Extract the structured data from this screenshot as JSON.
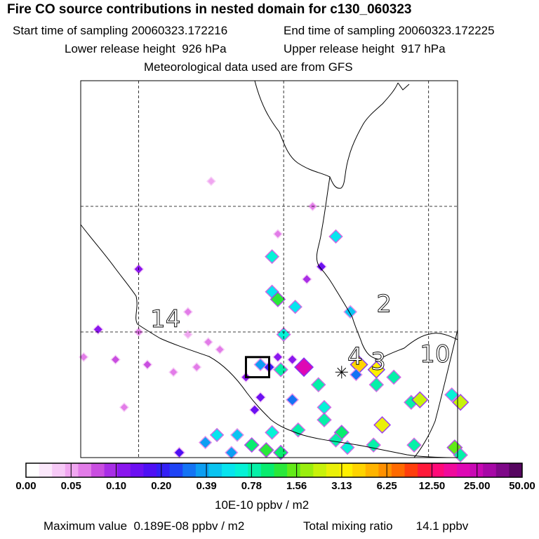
{
  "header": {
    "title": "Fire CO source contributions in nested domain for c130_060323",
    "start_time": "Start time of sampling 20060323.172216",
    "end_time": "End time of sampling 20060323.172225",
    "lower_release": "Lower release height  926 hPa",
    "upper_release": "Upper release height  917 hPa",
    "meteo": "Meteorological data used are from GFS"
  },
  "footer": {
    "unit": "10E-10 ppbv / m2",
    "max_value": "Maximum value  0.189E-08 ppbv / m2",
    "total_mixing_ratio": "Total mixing ratio       14.1 ppbv"
  },
  "chart_data": {
    "type": "heatmap",
    "title": "Fire CO source contributions in nested domain for c130_060323",
    "colorbar": {
      "unit": "10E-10 ppbv / m2",
      "tick_labels": [
        "0.00",
        "0.05",
        "0.10",
        "0.20",
        "0.39",
        "0.78",
        "1.56",
        "3.13",
        "6.25",
        "12.50",
        "25.00",
        "50.00"
      ],
      "colors": [
        "#ffffff",
        "#fbe8fb",
        "#f6c9f6",
        "#f0a6f0",
        "#e27ce8",
        "#c94ee0",
        "#a82ee6",
        "#8a17ee",
        "#6c10f2",
        "#4e10f4",
        "#3320f5",
        "#1f44f5",
        "#1474f4",
        "#0d9ef2",
        "#0ac4f0",
        "#08e4ee",
        "#06f2d6",
        "#06f0a8",
        "#08ec6e",
        "#2ae83a",
        "#62ea18",
        "#9aee0e",
        "#c8f20a",
        "#eaf008",
        "#fff000",
        "#ffd400",
        "#ffb400",
        "#ff9000",
        "#ff6a00",
        "#ff3e0c",
        "#ff1a3a",
        "#ff0a78",
        "#f00a9c",
        "#de08b4",
        "#c808b4",
        "#a608a6",
        "#7e0888",
        "#560660"
      ]
    },
    "markers": [
      {
        "label": "14",
        "lon": -99.6,
        "lat": 20.2
      },
      {
        "label": "2",
        "lon": -91.8,
        "lat": 20.8
      },
      {
        "label": "3",
        "lon": -92.0,
        "lat": 18.5
      },
      {
        "label": "10",
        "lon": -90.3,
        "lat": 18.8
      },
      {
        "label": "4",
        "lon": -92.8,
        "lat": 18.7
      }
    ],
    "sampling_point": {
      "lon": -93.0,
      "lat": 18.4
    },
    "source_box": {
      "lon": [
        -96.3,
        -95.5
      ],
      "lat": [
        18.2,
        19.0
      ]
    },
    "extent": {
      "lon": [
        -102,
        -89
      ],
      "lat": [
        15,
        30
      ]
    },
    "gridlines": {
      "lon": [
        -100,
        -95,
        -90
      ],
      "lat": [
        25,
        20
      ]
    },
    "cells": [
      {
        "lon": -97.5,
        "lat": 26.0,
        "level": 3
      },
      {
        "lon": -94.0,
        "lat": 25.0,
        "level": 4
      },
      {
        "lon": -95.2,
        "lat": 23.9,
        "level": 4
      },
      {
        "lon": -95.4,
        "lat": 23.0,
        "level": 16
      },
      {
        "lon": -93.2,
        "lat": 23.8,
        "level": 15
      },
      {
        "lon": -93.7,
        "lat": 22.6,
        "level": 8
      },
      {
        "lon": -94.2,
        "lat": 22.1,
        "level": 6
      },
      {
        "lon": -100.0,
        "lat": 22.5,
        "level": 7
      },
      {
        "lon": -95.4,
        "lat": 21.6,
        "level": 15
      },
      {
        "lon": -95.2,
        "lat": 21.3,
        "level": 19
      },
      {
        "lon": -94.6,
        "lat": 21.0,
        "level": 15
      },
      {
        "lon": -92.7,
        "lat": 20.8,
        "level": 14
      },
      {
        "lon": -95.0,
        "lat": 19.9,
        "level": 16
      },
      {
        "lon": -100.0,
        "lat": 20.0,
        "level": 4
      },
      {
        "lon": -101.4,
        "lat": 20.1,
        "level": 7
      },
      {
        "lon": -98.3,
        "lat": 20.8,
        "level": 4
      },
      {
        "lon": -98.3,
        "lat": 19.9,
        "level": 3
      },
      {
        "lon": -97.6,
        "lat": 19.6,
        "level": 4
      },
      {
        "lon": -97.2,
        "lat": 19.3,
        "level": 4
      },
      {
        "lon": -100.8,
        "lat": 18.9,
        "level": 5
      },
      {
        "lon": -101.9,
        "lat": 19.0,
        "level": 4
      },
      {
        "lon": -99.7,
        "lat": 18.7,
        "level": 5
      },
      {
        "lon": -98.8,
        "lat": 18.4,
        "level": 4
      },
      {
        "lon": -98.0,
        "lat": 18.6,
        "level": 4
      },
      {
        "lon": -95.2,
        "lat": 19.0,
        "level": 7
      },
      {
        "lon": -94.7,
        "lat": 18.9,
        "level": 7
      },
      {
        "lon": -95.5,
        "lat": 18.6,
        "level": 10
      },
      {
        "lon": -96.3,
        "lat": 18.2,
        "level": 7
      },
      {
        "lon": -95.8,
        "lat": 18.7,
        "level": 13
      },
      {
        "lon": -95.1,
        "lat": 18.5,
        "level": 17
      },
      {
        "lon": -94.3,
        "lat": 18.6,
        "level": 33
      },
      {
        "lon": -93.8,
        "lat": 17.9,
        "level": 17
      },
      {
        "lon": -95.8,
        "lat": 17.4,
        "level": 8
      },
      {
        "lon": -94.7,
        "lat": 17.3,
        "level": 12
      },
      {
        "lon": -93.6,
        "lat": 17.0,
        "level": 16
      },
      {
        "lon": -100.5,
        "lat": 17.0,
        "level": 4
      },
      {
        "lon": -96.0,
        "lat": 16.9,
        "level": 8
      },
      {
        "lon": -92.4,
        "lat": 18.7,
        "level": 25
      },
      {
        "lon": -91.8,
        "lat": 18.5,
        "level": 24
      },
      {
        "lon": -91.2,
        "lat": 18.2,
        "level": 17
      },
      {
        "lon": -90.6,
        "lat": 17.2,
        "level": 17
      },
      {
        "lon": -91.8,
        "lat": 17.9,
        "level": 17
      },
      {
        "lon": -92.5,
        "lat": 18.3,
        "level": 12
      },
      {
        "lon": -90.3,
        "lat": 17.3,
        "level": 22
      },
      {
        "lon": -88.9,
        "lat": 17.2,
        "level": 22
      },
      {
        "lon": -89.2,
        "lat": 17.5,
        "level": 16
      },
      {
        "lon": -93.6,
        "lat": 16.5,
        "level": 17
      },
      {
        "lon": -91.6,
        "lat": 16.3,
        "level": 23
      },
      {
        "lon": -94.5,
        "lat": 16.1,
        "level": 17
      },
      {
        "lon": -93.0,
        "lat": 16.0,
        "level": 18
      },
      {
        "lon": -95.4,
        "lat": 16.0,
        "level": 16
      },
      {
        "lon": -93.2,
        "lat": 15.7,
        "level": 17
      },
      {
        "lon": -91.9,
        "lat": 15.5,
        "level": 17
      },
      {
        "lon": -90.5,
        "lat": 15.5,
        "level": 17
      },
      {
        "lon": -96.1,
        "lat": 15.5,
        "level": 18
      },
      {
        "lon": -96.6,
        "lat": 15.9,
        "level": 14
      },
      {
        "lon": -92.8,
        "lat": 15.4,
        "level": 16
      },
      {
        "lon": -95.6,
        "lat": 15.3,
        "level": 19
      },
      {
        "lon": -89.1,
        "lat": 15.4,
        "level": 20
      },
      {
        "lon": -88.9,
        "lat": 15.1,
        "level": 17
      },
      {
        "lon": -97.3,
        "lat": 15.9,
        "level": 15
      },
      {
        "lon": -97.7,
        "lat": 15.6,
        "level": 13
      },
      {
        "lon": -98.6,
        "lat": 15.2,
        "level": 9
      },
      {
        "lon": -96.8,
        "lat": 15.2,
        "level": 13
      },
      {
        "lon": -95.1,
        "lat": 15.2,
        "level": 18
      }
    ]
  }
}
